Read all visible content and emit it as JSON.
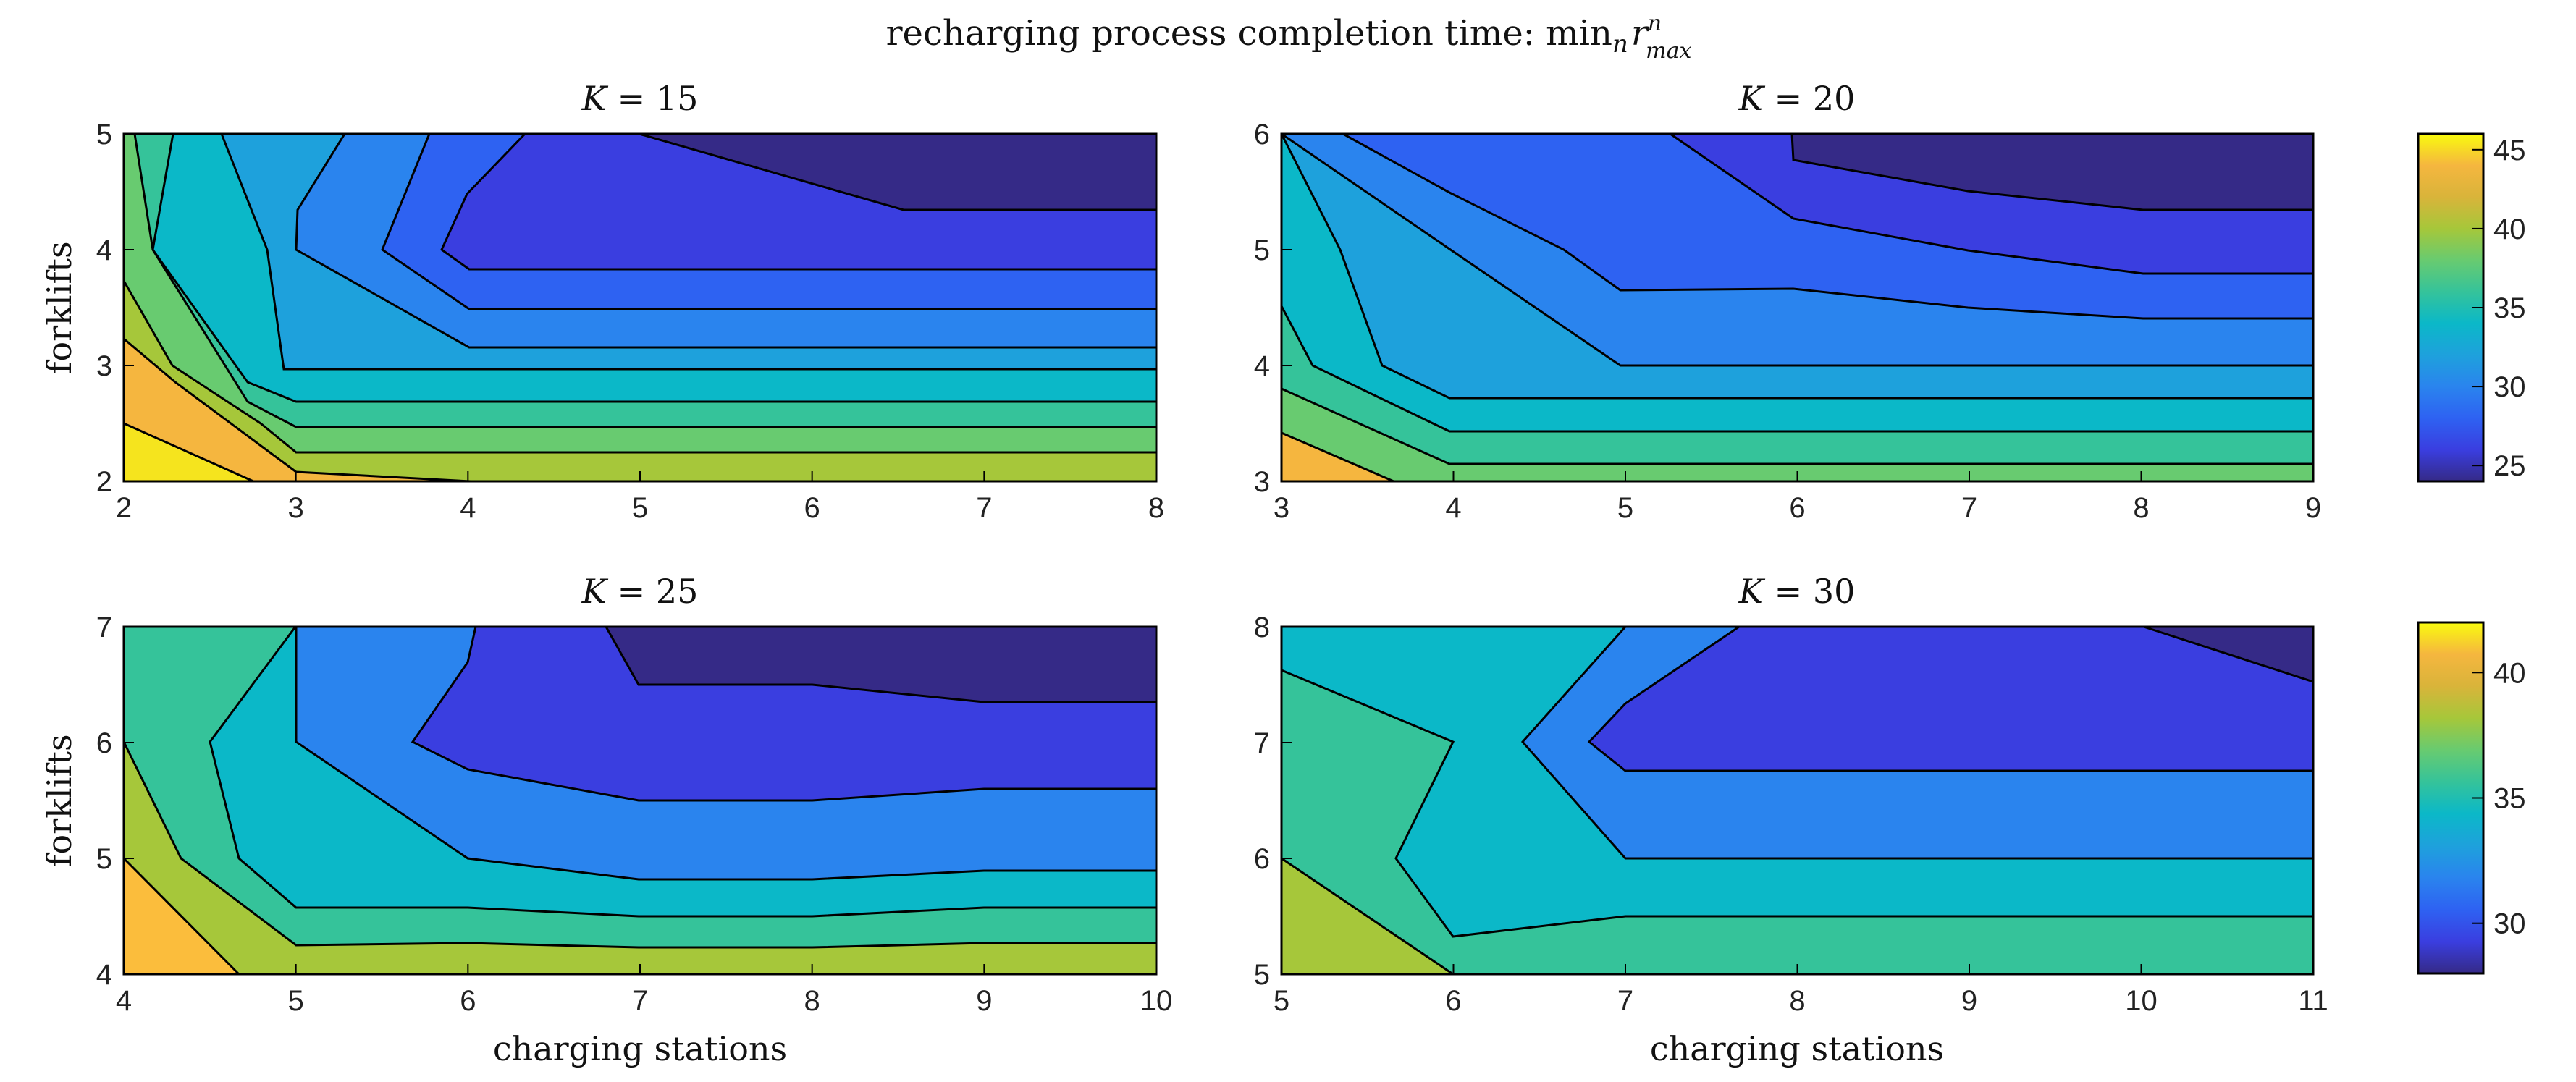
{
  "figure": {
    "title_text": "recharging process completion time: ",
    "title_math": {
      "min": "min",
      "sub": "n",
      "var": "r",
      "sup": "n",
      "varsub": "max"
    }
  },
  "chart_data": [
    {
      "type": "contour",
      "k_label": "K",
      "k_value": "15",
      "xlabel": "",
      "ylabel": "forklifts",
      "xlim": [
        2,
        8
      ],
      "ylim": [
        2,
        5
      ],
      "xticks": [
        "2",
        "3",
        "4",
        "5",
        "6",
        "7",
        "8"
      ],
      "yticks": [
        "2",
        "3",
        "4",
        "5"
      ],
      "levels": [
        {
          "value": 24,
          "color": "#352a87"
        },
        {
          "value": 26,
          "color": "#3a3ee0"
        },
        {
          "value": 28,
          "color": "#2e62f2"
        },
        {
          "value": 30,
          "color": "#2a84ee"
        },
        {
          "value": 32,
          "color": "#1ea1dc"
        },
        {
          "value": 34,
          "color": "#0bb8c8"
        },
        {
          "value": 36,
          "color": "#35c39a"
        },
        {
          "value": 38,
          "color": "#68cb70"
        },
        {
          "value": 40,
          "color": "#a6c73a"
        },
        {
          "value": 42,
          "color": "#f5b63f"
        },
        {
          "value": 44,
          "color": "#f5e41e"
        }
      ]
    },
    {
      "type": "contour",
      "k_label": "K",
      "k_value": "20",
      "xlabel": "",
      "ylabel": "",
      "xlim": [
        3,
        9
      ],
      "ylim": [
        3,
        6
      ],
      "xticks": [
        "3",
        "4",
        "5",
        "6",
        "7",
        "8",
        "9"
      ],
      "yticks": [
        "3",
        "4",
        "5",
        "6"
      ],
      "levels": [
        {
          "value": 24,
          "color": "#352a87"
        },
        {
          "value": 26,
          "color": "#3a3ee0"
        },
        {
          "value": 28,
          "color": "#2e62f2"
        },
        {
          "value": 30,
          "color": "#2a84ee"
        },
        {
          "value": 32,
          "color": "#1ea1dc"
        },
        {
          "value": 34,
          "color": "#0bb8c8"
        },
        {
          "value": 36,
          "color": "#35c39a"
        },
        {
          "value": 38,
          "color": "#68cb70"
        },
        {
          "value": 40,
          "color": "#a6c73a"
        },
        {
          "value": 42,
          "color": "#f5b63f"
        }
      ]
    },
    {
      "type": "contour",
      "k_label": "K",
      "k_value": "25",
      "xlabel": "charging stations",
      "ylabel": "forklifts",
      "xlim": [
        4,
        10
      ],
      "ylim": [
        4,
        7
      ],
      "xticks": [
        "4",
        "5",
        "6",
        "7",
        "8",
        "9",
        "10"
      ],
      "yticks": [
        "4",
        "5",
        "6",
        "7"
      ],
      "levels": [
        {
          "value": 28,
          "color": "#352a87"
        },
        {
          "value": 30,
          "color": "#3a3ee0"
        },
        {
          "value": 32,
          "color": "#2a84ee"
        },
        {
          "value": 34,
          "color": "#0bb8c8"
        },
        {
          "value": 36,
          "color": "#35c39a"
        },
        {
          "value": 38,
          "color": "#a6c73a"
        },
        {
          "value": 40,
          "color": "#fbbd3c"
        }
      ]
    },
    {
      "type": "contour",
      "k_label": "K",
      "k_value": "30",
      "xlabel": "charging stations",
      "ylabel": "",
      "xlim": [
        5,
        11
      ],
      "ylim": [
        5,
        8
      ],
      "xticks": [
        "5",
        "6",
        "7",
        "8",
        "9",
        "10",
        "11"
      ],
      "yticks": [
        "5",
        "6",
        "7",
        "8"
      ],
      "levels": [
        {
          "value": 28,
          "color": "#352a87"
        },
        {
          "value": 30,
          "color": "#3a3ee0"
        },
        {
          "value": 32,
          "color": "#2a84ee"
        },
        {
          "value": 34,
          "color": "#0bb8c8"
        },
        {
          "value": 36,
          "color": "#35c39a"
        },
        {
          "value": 38,
          "color": "#a6c73a"
        }
      ]
    }
  ],
  "colorbars": [
    {
      "range": [
        24,
        46
      ],
      "ticks": [
        "25",
        "30",
        "35",
        "40",
        "45"
      ],
      "stops": [
        "#352a87",
        "#3a3ee0",
        "#2e62f2",
        "#2a84ee",
        "#1ea1dc",
        "#0bb8c8",
        "#35c39a",
        "#68cb70",
        "#a6c73a",
        "#d9b43a",
        "#f5b63f",
        "#f9fb0e"
      ]
    },
    {
      "range": [
        28,
        42
      ],
      "ticks": [
        "30",
        "35",
        "40"
      ],
      "stops": [
        "#352a87",
        "#3a3ee0",
        "#2e62f2",
        "#2a84ee",
        "#1ea1dc",
        "#0bb8c8",
        "#35c39a",
        "#68cb70",
        "#a6c73a",
        "#d9b43a",
        "#f5b63f",
        "#f9fb0e"
      ]
    }
  ]
}
